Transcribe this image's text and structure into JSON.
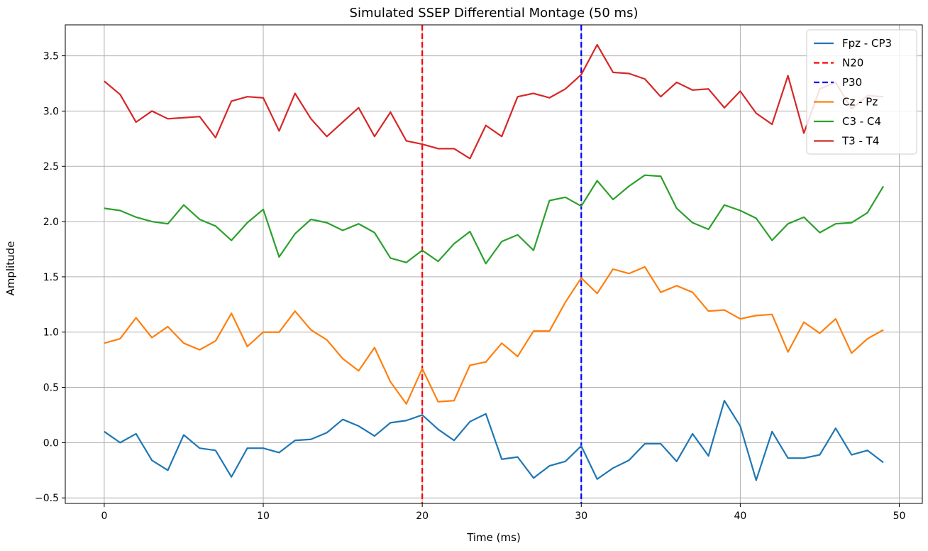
{
  "chart_data": {
    "type": "line",
    "title": "Simulated SSEP Differential Montage (50 ms)",
    "xlabel": "Time (ms)",
    "ylabel": "Amplitude",
    "xlim": [
      -2.45,
      51.45
    ],
    "ylim": [
      -0.55,
      3.78
    ],
    "xticks": [
      0,
      10,
      20,
      30,
      40,
      50
    ],
    "yticks": [
      -0.5,
      0.0,
      0.5,
      1.0,
      1.5,
      2.0,
      2.5,
      3.0,
      3.5
    ],
    "ytick_labels": [
      "−0.5",
      "0.0",
      "0.5",
      "1.0",
      "1.5",
      "2.0",
      "2.5",
      "3.0",
      "3.5"
    ],
    "grid": true,
    "legend_position": "top-right",
    "x": [
      0,
      1,
      2,
      3,
      4,
      5,
      6,
      7,
      8,
      9,
      10,
      11,
      12,
      13,
      14,
      15,
      16,
      17,
      18,
      19,
      20,
      21,
      22,
      23,
      24,
      25,
      26,
      27,
      28,
      29,
      30,
      31,
      32,
      33,
      34,
      35,
      36,
      37,
      38,
      39,
      40,
      41,
      42,
      43,
      44,
      45,
      46,
      47,
      48,
      49
    ],
    "series": [
      {
        "name": "Fpz - CP3",
        "color": "#1f77b4",
        "values": [
          0.1,
          0.0,
          0.08,
          -0.16,
          -0.25,
          0.07,
          -0.05,
          -0.07,
          -0.31,
          -0.05,
          -0.05,
          -0.09,
          0.02,
          0.03,
          0.09,
          0.21,
          0.15,
          0.06,
          0.18,
          0.2,
          0.25,
          0.12,
          0.02,
          0.19,
          0.26,
          -0.15,
          -0.13,
          -0.32,
          -0.21,
          -0.17,
          -0.03,
          -0.33,
          -0.23,
          -0.16,
          -0.01,
          -0.01,
          -0.17,
          0.08,
          -0.12,
          0.38,
          0.15,
          -0.34,
          0.1,
          -0.14,
          -0.14,
          -0.11,
          0.13,
          -0.11,
          -0.07,
          -0.18
        ]
      },
      {
        "name": "Cz - Pz",
        "color": "#ff7f0e",
        "values": [
          0.9,
          0.94,
          1.13,
          0.95,
          1.05,
          0.9,
          0.84,
          0.92,
          1.17,
          0.87,
          1.0,
          1.0,
          1.19,
          1.02,
          0.93,
          0.76,
          0.65,
          0.86,
          0.55,
          0.35,
          0.67,
          0.37,
          0.38,
          0.7,
          0.73,
          0.9,
          0.78,
          1.01,
          1.01,
          1.27,
          1.49,
          1.35,
          1.57,
          1.53,
          1.59,
          1.36,
          1.42,
          1.36,
          1.19,
          1.2,
          1.12,
          1.15,
          1.16,
          0.82,
          1.09,
          0.99,
          1.12,
          0.81,
          0.94,
          1.02
        ]
      },
      {
        "name": "C3 - C4",
        "color": "#2ca02c",
        "values": [
          2.12,
          2.1,
          2.04,
          2.0,
          1.98,
          2.15,
          2.02,
          1.96,
          1.83,
          1.99,
          2.11,
          1.68,
          1.89,
          2.02,
          1.99,
          1.92,
          1.98,
          1.9,
          1.67,
          1.63,
          1.74,
          1.64,
          1.8,
          1.91,
          1.62,
          1.82,
          1.88,
          1.74,
          2.19,
          2.22,
          2.14,
          2.37,
          2.2,
          2.32,
          2.42,
          2.41,
          2.12,
          1.99,
          1.93,
          2.15,
          2.1,
          2.03,
          1.83,
          1.98,
          2.04,
          1.9,
          1.98,
          1.99,
          2.08,
          2.32
        ]
      },
      {
        "name": "T3 - T4",
        "color": "#d62728",
        "values": [
          3.27,
          3.15,
          2.9,
          3.0,
          2.93,
          2.94,
          2.95,
          2.76,
          3.09,
          3.13,
          3.12,
          2.82,
          3.16,
          2.93,
          2.77,
          2.9,
          3.03,
          2.77,
          2.99,
          2.73,
          2.7,
          2.66,
          2.66,
          2.57,
          2.87,
          2.77,
          3.13,
          3.16,
          3.12,
          3.2,
          3.33,
          3.6,
          3.35,
          3.34,
          3.29,
          3.13,
          3.26,
          3.19,
          3.2,
          3.03,
          3.18,
          2.98,
          2.88,
          3.32,
          2.8,
          3.2,
          3.26,
          3.02,
          3.14,
          3.13
        ]
      }
    ],
    "markers": [
      {
        "name": "N20",
        "x": 20,
        "color": "#ff0000",
        "style": "dashed"
      },
      {
        "name": "P30",
        "x": 30,
        "color": "#0000ff",
        "style": "dashed"
      }
    ],
    "legend_order": [
      "Fpz - CP3",
      "N20",
      "P30",
      "Cz - Pz",
      "C3 - C4",
      "T3 - T4"
    ]
  }
}
